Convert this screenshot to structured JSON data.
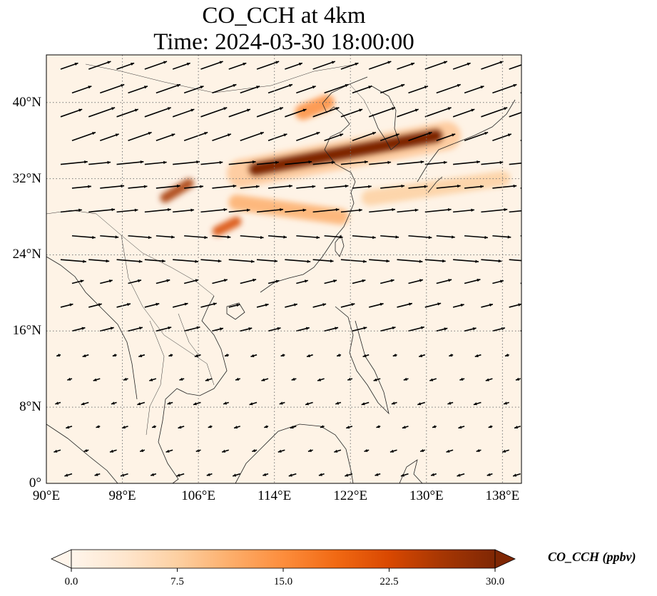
{
  "title": {
    "line1": "CO_CCH at 4km",
    "line2": "Time: 2024-03-30 18:00:00"
  },
  "map": {
    "extent": {
      "lon_min": 90,
      "lon_max": 140,
      "lat_min": 0,
      "lat_max": 45
    },
    "lon_ticks": [
      {
        "value": 90,
        "label": "90°E"
      },
      {
        "value": 98,
        "label": "98°E"
      },
      {
        "value": 106,
        "label": "106°E"
      },
      {
        "value": 114,
        "label": "114°E"
      },
      {
        "value": 122,
        "label": "122°E"
      },
      {
        "value": 130,
        "label": "130°E"
      },
      {
        "value": 138,
        "label": "138°E"
      }
    ],
    "lat_ticks": [
      {
        "value": 0,
        "label": "0°"
      },
      {
        "value": 8,
        "label": "8°N"
      },
      {
        "value": 16,
        "label": "16°N"
      },
      {
        "value": 24,
        "label": "24°N"
      },
      {
        "value": 32,
        "label": "32°N"
      },
      {
        "value": 40,
        "label": "40°N"
      }
    ],
    "gridlines": "dotted",
    "plume": [
      {
        "lon_start": 112,
        "lat_start": 33,
        "lon_end": 131,
        "lat_end": 36.5,
        "level": 30
      },
      {
        "lon_start": 102.5,
        "lat_start": 30,
        "lon_end": 105,
        "lat_end": 31.5,
        "level": 26
      },
      {
        "lon_start": 108,
        "lat_start": 26.5,
        "lon_end": 110,
        "lat_end": 27.5,
        "level": 24
      },
      {
        "lon_start": 117,
        "lat_start": 39,
        "lon_end": 119.5,
        "lat_end": 40,
        "level": 16
      },
      {
        "lon_start": 110,
        "lat_start": 29.5,
        "lon_end": 121,
        "lat_end": 28,
        "level": 12
      },
      {
        "lon_start": 124,
        "lat_start": 30,
        "lon_end": 138,
        "lat_end": 32,
        "level": 6
      }
    ]
  },
  "colorbar": {
    "label": "CO_CCH (ppbv)",
    "min": 0,
    "max": 30,
    "extend": "both",
    "colormap": [
      "#fff5eb",
      "#fee6ce",
      "#fdd0a2",
      "#fdae6b",
      "#fd8d3c",
      "#f16913",
      "#d94801",
      "#a63603",
      "#7f2704"
    ],
    "ticks": [
      {
        "value": 0,
        "label": "0.0"
      },
      {
        "value": 7.5,
        "label": "7.5"
      },
      {
        "value": 15,
        "label": "15.0"
      },
      {
        "value": 22.5,
        "label": "22.5"
      },
      {
        "value": 30,
        "label": "30.0"
      }
    ]
  }
}
